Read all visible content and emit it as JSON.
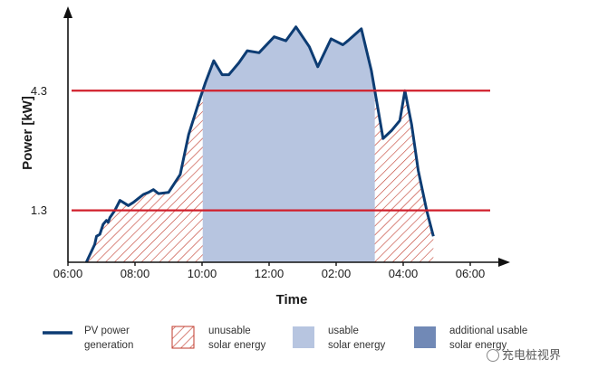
{
  "chart_data": {
    "type": "area",
    "title": "",
    "xlabel": "Time",
    "ylabel": "Power [kW]",
    "x_ticks": [
      "06:00",
      "08:00",
      "10:00",
      "12:00",
      "02:00",
      "04:00",
      "06:00"
    ],
    "y_ticks": [
      {
        "label": "4.3",
        "value": 4.3
      },
      {
        "label": "1.3",
        "value": 1.3
      }
    ],
    "x_range": [
      0,
      12
    ],
    "y_range": [
      0,
      6.3
    ],
    "thresholds": [
      4.3,
      1.3
    ],
    "series": [
      {
        "name": "PV power generation",
        "x": [
          0.55,
          0.8,
          0.85,
          0.95,
          1.05,
          1.15,
          1.2,
          1.25,
          1.4,
          1.55,
          1.65,
          1.8,
          1.95,
          2.1,
          2.25,
          2.4,
          2.55,
          2.7,
          3.0,
          3.35,
          3.6,
          3.9,
          4.1,
          4.35,
          4.6,
          4.8,
          5.1,
          5.35,
          5.7,
          6.15,
          6.5,
          6.8,
          7.2,
          7.45,
          7.85,
          8.2,
          8.35,
          8.75,
          9.05,
          9.4,
          9.65,
          9.9,
          10.05,
          10.25,
          10.45,
          10.7,
          10.9
        ],
        "y": [
          0,
          0.45,
          0.65,
          0.7,
          0.95,
          1.05,
          1.0,
          1.12,
          1.3,
          1.55,
          1.5,
          1.42,
          1.5,
          1.6,
          1.7,
          1.75,
          1.82,
          1.72,
          1.75,
          2.2,
          3.2,
          4.0,
          4.5,
          5.05,
          4.7,
          4.7,
          5.0,
          5.3,
          5.25,
          5.65,
          5.55,
          5.9,
          5.4,
          4.9,
          5.6,
          5.45,
          5.55,
          5.85,
          4.8,
          3.1,
          3.3,
          3.55,
          4.3,
          3.45,
          2.3,
          1.3,
          0.65
        ]
      }
    ],
    "regions": [
      {
        "label": "unusable solar energy",
        "color": "#c0392b"
      },
      {
        "label": "usable solar energy",
        "color": "#b7c5e0"
      },
      {
        "label": "additional usable solar energy",
        "color": "#7189b6"
      }
    ],
    "colors": {
      "line": "#0d3c73",
      "threshold": "#d11f2b",
      "axis": "#111111"
    }
  },
  "legend": {
    "pv_line": [
      "PV power",
      "generation"
    ],
    "unusable": [
      "unusable",
      "solar energy"
    ],
    "usable": [
      "usable",
      "solar energy"
    ],
    "additional": [
      "additional usable",
      "solar energy"
    ]
  },
  "watermark": "充电桩视界"
}
